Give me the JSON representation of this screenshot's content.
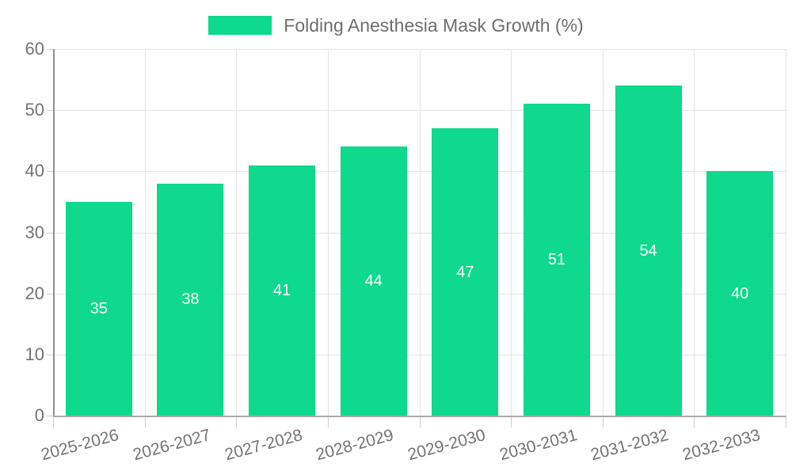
{
  "legend": {
    "label": "Folding Anesthesia Mask Growth (%)",
    "swatch_color": "#0ed98c"
  },
  "chart_data": {
    "type": "bar",
    "title": "Folding Anesthesia Mask Growth (%)",
    "categories": [
      "2025-2026",
      "2026-2027",
      "2027-2028",
      "2028-2029",
      "2029-2030",
      "2030-2031",
      "2031-2032",
      "2032-2033"
    ],
    "values": [
      35,
      38,
      41,
      44,
      47,
      51,
      54,
      40
    ],
    "xlabel": "",
    "ylabel": "",
    "ylim": [
      0,
      60
    ],
    "yticks": [
      0,
      10,
      20,
      30,
      40,
      50,
      60
    ],
    "grid": true,
    "legend_position": "top",
    "bar_color": "#0ed98c",
    "value_label_color": "#ffffff",
    "grid_color": "#e3e3e3",
    "axis_color": "#9a9a9a",
    "tick_color": "#cfcfcf",
    "text_color": "#737373"
  }
}
